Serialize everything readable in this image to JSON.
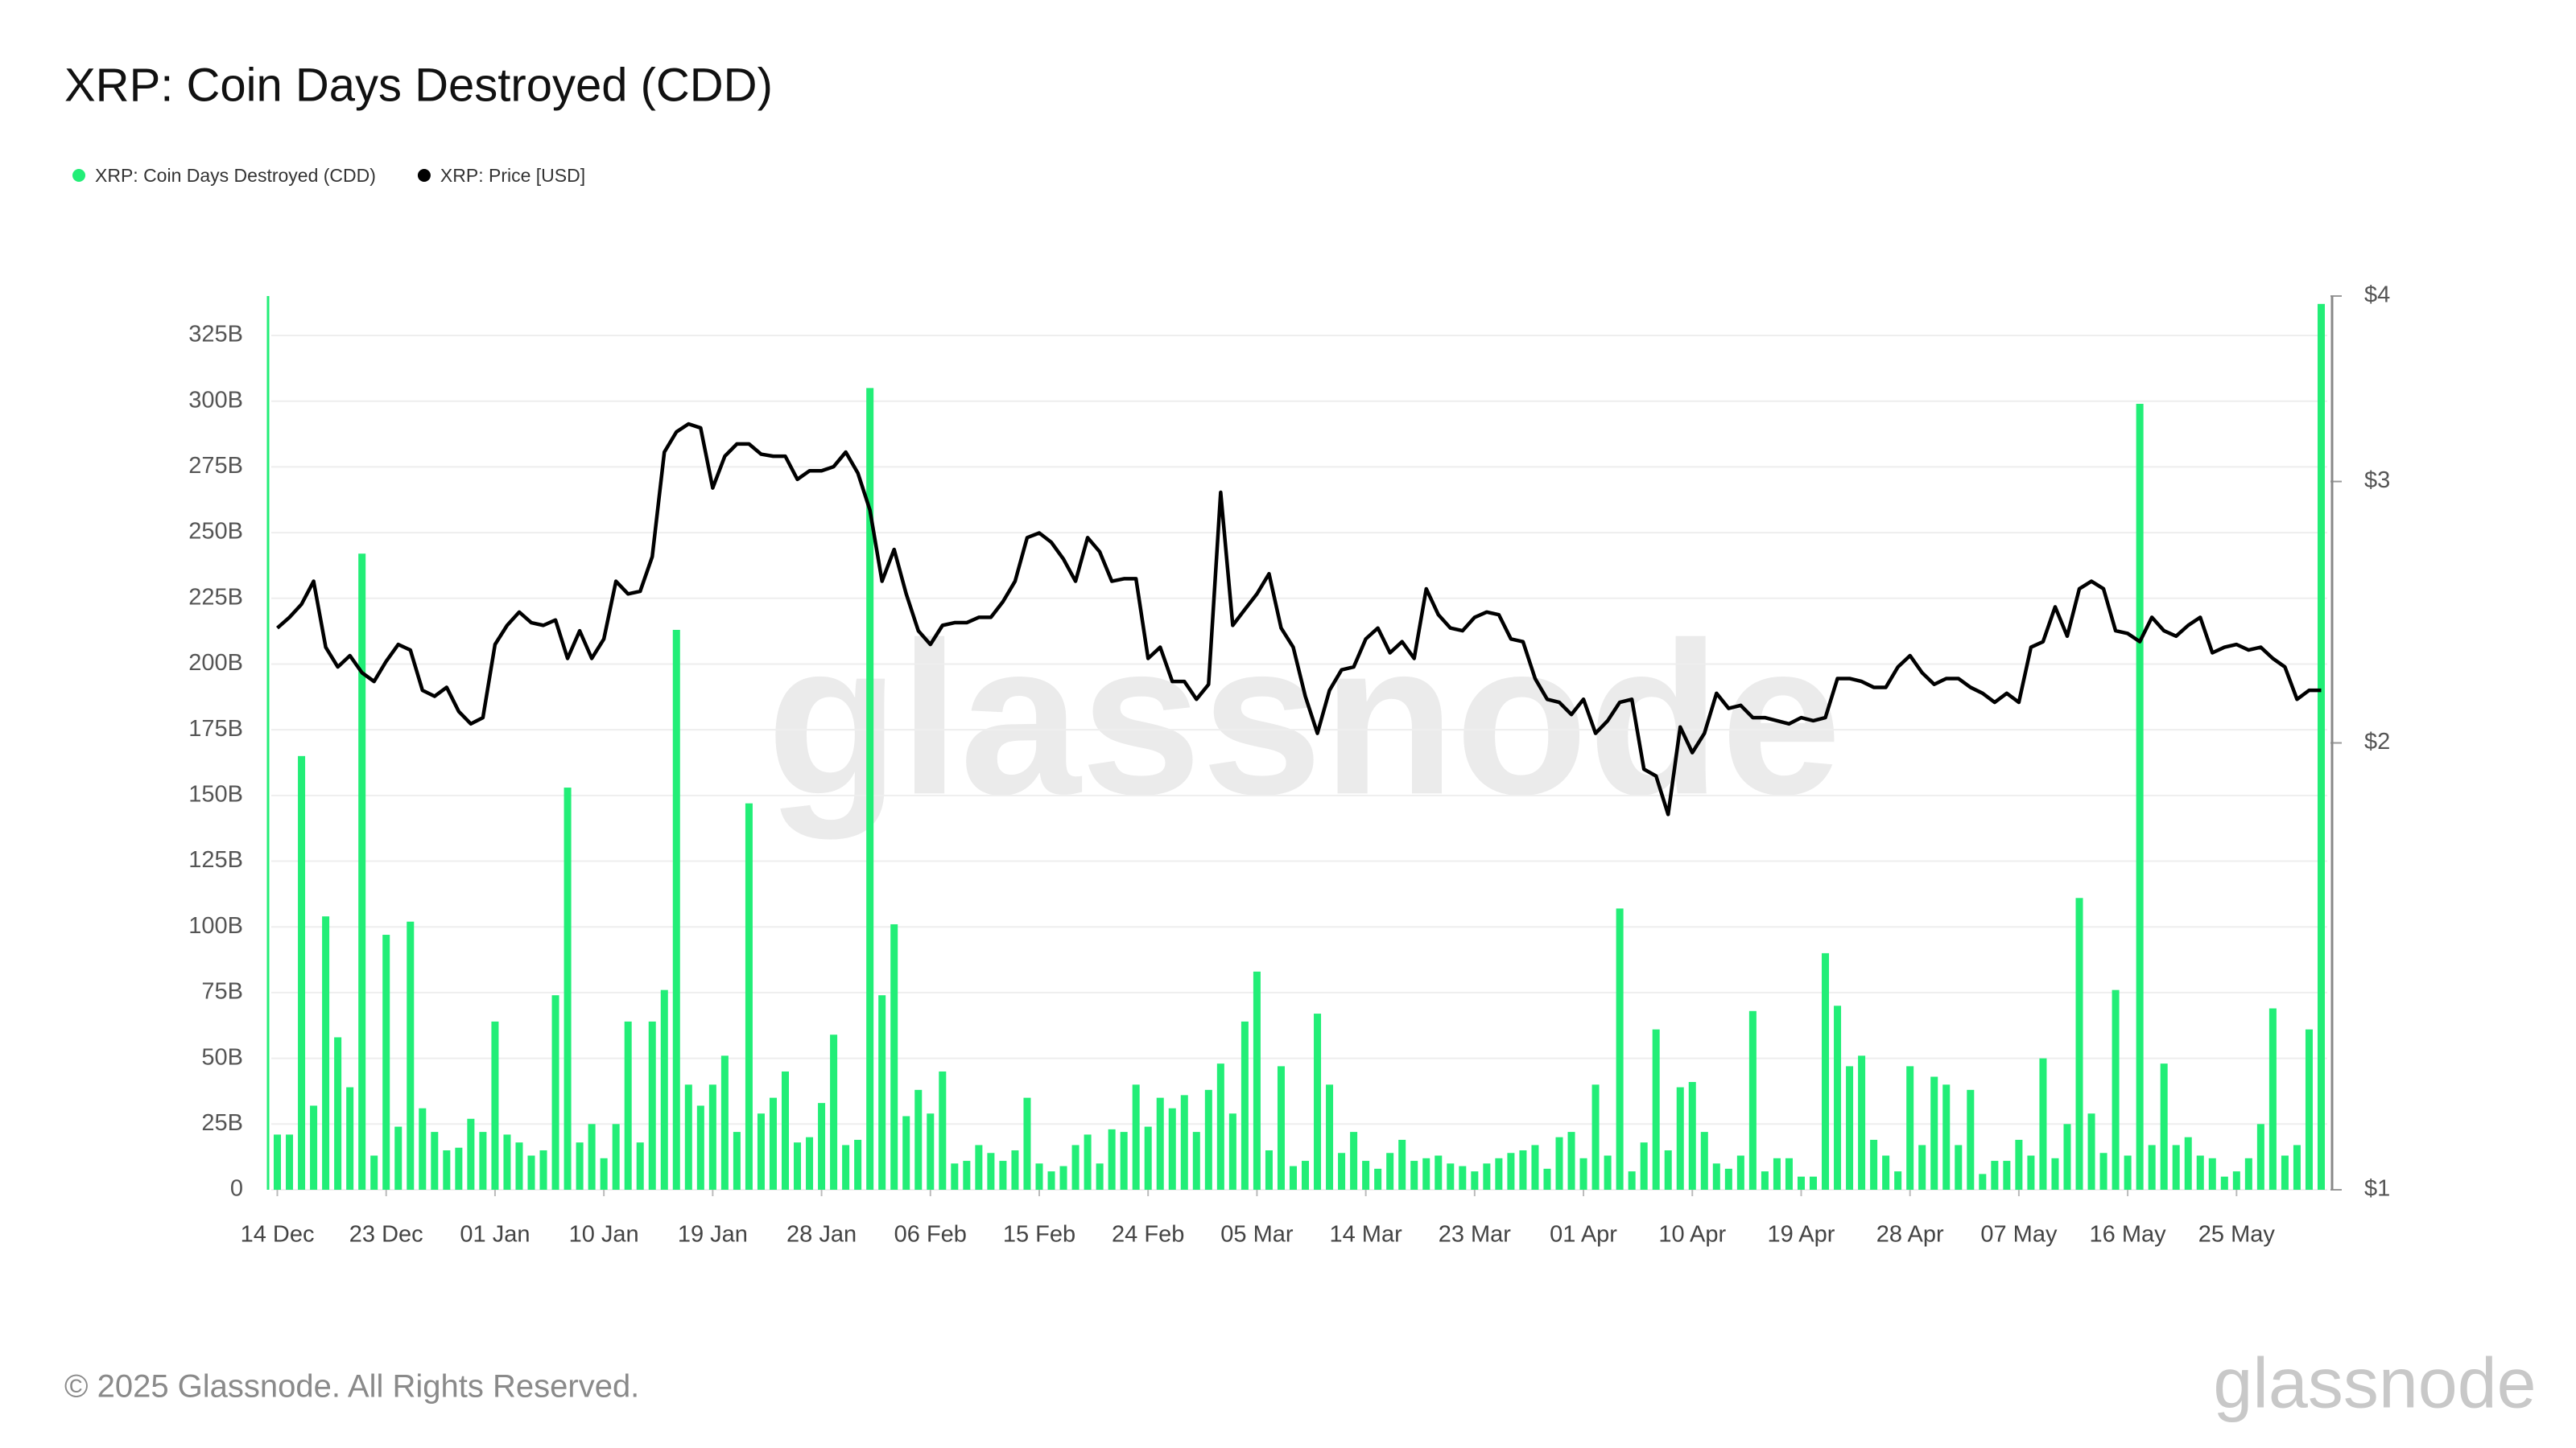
{
  "chart_data": {
    "type": "combo",
    "title": "XRP: Coin Days Destroyed (CDD)",
    "watermark": "glassnode",
    "categories": [
      "14 Dec",
      null,
      null,
      null,
      null,
      null,
      null,
      null,
      null,
      "23 Dec",
      null,
      null,
      null,
      null,
      null,
      null,
      null,
      null,
      "01 Jan",
      null,
      null,
      null,
      null,
      null,
      null,
      null,
      null,
      "10 Jan",
      null,
      null,
      null,
      null,
      null,
      null,
      null,
      null,
      "19 Jan",
      null,
      null,
      null,
      null,
      null,
      null,
      null,
      null,
      "28 Jan",
      null,
      null,
      null,
      null,
      null,
      null,
      null,
      null,
      "06 Feb",
      null,
      null,
      null,
      null,
      null,
      null,
      null,
      null,
      "15 Feb",
      null,
      null,
      null,
      null,
      null,
      null,
      null,
      null,
      "24 Feb",
      null,
      null,
      null,
      null,
      null,
      null,
      null,
      null,
      "05 Mar",
      null,
      null,
      null,
      null,
      null,
      null,
      null,
      null,
      "14 Mar",
      null,
      null,
      null,
      null,
      null,
      null,
      null,
      null,
      "23 Mar",
      null,
      null,
      null,
      null,
      null,
      null,
      null,
      null,
      "01 Apr",
      null,
      null,
      null,
      null,
      null,
      null,
      null,
      null,
      "10 Apr",
      null,
      null,
      null,
      null,
      null,
      null,
      null,
      null,
      "19 Apr",
      null,
      null,
      null,
      null,
      null,
      null,
      null,
      null,
      "28 Apr",
      null,
      null,
      null,
      null,
      null,
      null,
      null,
      null,
      "07 May",
      null,
      null,
      null,
      null,
      null,
      null,
      null,
      null,
      "16 May",
      null,
      null,
      null,
      null,
      null,
      null,
      null,
      null,
      "25 May",
      null,
      null,
      null,
      null,
      null,
      null,
      null
    ],
    "series": [
      {
        "name": "XRP: Coin Days Destroyed (CDD)",
        "type": "bar",
        "color": "#22ee77",
        "values": [
          21,
          21,
          165,
          32,
          104,
          58,
          39,
          242,
          13,
          97,
          24,
          102,
          31,
          22,
          15,
          16,
          27,
          22,
          64,
          21,
          18,
          13,
          15,
          74,
          153,
          18,
          25,
          12,
          25,
          64,
          18,
          64,
          76,
          213,
          40,
          32,
          40,
          51,
          22,
          147,
          29,
          35,
          45,
          18,
          20,
          33,
          59,
          17,
          19,
          305,
          74,
          101,
          28,
          38,
          29,
          45,
          10,
          11,
          17,
          14,
          11,
          15,
          35,
          10,
          7,
          9,
          17,
          21,
          10,
          23,
          22,
          40,
          24,
          35,
          31,
          36,
          22,
          38,
          48,
          29,
          64,
          83,
          15,
          47,
          9,
          11,
          67,
          40,
          14,
          22,
          11,
          8,
          14,
          19,
          11,
          12,
          13,
          10,
          9,
          7,
          10,
          12,
          14,
          15,
          17,
          8,
          20,
          22,
          12,
          40,
          13,
          107,
          7,
          18,
          61,
          15,
          39,
          41,
          22,
          10,
          8,
          13,
          68,
          7,
          12,
          12,
          5,
          5,
          90,
          70,
          47,
          51,
          19,
          13,
          7,
          47,
          17,
          43,
          40,
          17,
          38,
          6,
          11,
          11,
          19,
          13,
          50,
          12,
          25,
          111,
          29,
          14,
          76,
          13,
          299,
          17,
          48,
          17,
          20,
          13,
          12,
          5,
          7,
          12,
          25,
          69,
          13,
          17,
          61,
          337
        ]
      },
      {
        "name": "XRP: Price [USD]",
        "type": "line",
        "color": "#000000",
        "axis": "y2",
        "values": [
          2.39,
          2.43,
          2.48,
          2.57,
          2.32,
          2.25,
          2.29,
          2.23,
          2.2,
          2.27,
          2.33,
          2.31,
          2.17,
          2.15,
          2.18,
          2.1,
          2.06,
          2.08,
          2.33,
          2.4,
          2.45,
          2.41,
          2.4,
          2.42,
          2.28,
          2.38,
          2.28,
          2.35,
          2.57,
          2.52,
          2.53,
          2.67,
          3.14,
          3.24,
          3.28,
          3.26,
          2.97,
          3.12,
          3.18,
          3.18,
          3.13,
          3.12,
          3.12,
          3.01,
          3.05,
          3.05,
          3.07,
          3.14,
          3.04,
          2.87,
          2.57,
          2.7,
          2.52,
          2.38,
          2.33,
          2.4,
          2.41,
          2.41,
          2.43,
          2.43,
          2.49,
          2.57,
          2.75,
          2.77,
          2.73,
          2.66,
          2.57,
          2.75,
          2.69,
          2.57,
          2.58,
          2.58,
          2.28,
          2.32,
          2.2,
          2.2,
          2.14,
          2.19,
          2.95,
          2.4,
          2.46,
          2.52,
          2.6,
          2.39,
          2.32,
          2.15,
          2.03,
          2.17,
          2.24,
          2.25,
          2.35,
          2.39,
          2.3,
          2.34,
          2.28,
          2.54,
          2.44,
          2.39,
          2.38,
          2.43,
          2.45,
          2.44,
          2.35,
          2.34,
          2.21,
          2.14,
          2.13,
          2.09,
          2.14,
          2.03,
          2.07,
          2.13,
          2.14,
          1.92,
          1.9,
          1.79,
          2.05,
          1.97,
          2.03,
          2.16,
          2.11,
          2.12,
          2.08,
          2.08,
          2.07,
          2.06,
          2.08,
          2.07,
          2.08,
          2.21,
          2.21,
          2.2,
          2.18,
          2.18,
          2.25,
          2.29,
          2.23,
          2.19,
          2.21,
          2.21,
          2.18,
          2.16,
          2.13,
          2.16,
          2.13,
          2.32,
          2.34,
          2.47,
          2.36,
          2.54,
          2.57,
          2.54,
          2.38,
          2.37,
          2.34,
          2.43,
          2.38,
          2.36,
          2.4,
          2.43,
          2.3,
          2.32,
          2.33,
          2.31,
          2.32,
          2.28,
          2.25,
          2.14,
          2.17,
          2.17
        ]
      }
    ],
    "ylim": [
      0,
      340
    ],
    "yticks": [
      0,
      {
        "value": 25,
        "label": "25B"
      },
      {
        "value": 50,
        "label": "50B"
      },
      {
        "value": 75,
        "label": "75B"
      },
      {
        "value": 100,
        "label": "100B"
      },
      {
        "value": 125,
        "label": "125B"
      },
      {
        "value": 150,
        "label": "150B"
      },
      {
        "value": 175,
        "label": "175B"
      },
      {
        "value": 200,
        "label": "200B"
      },
      {
        "value": 225,
        "label": "225B"
      },
      {
        "value": 250,
        "label": "250B"
      },
      {
        "value": 275,
        "label": "275B"
      },
      {
        "value": 300,
        "label": "300B"
      },
      {
        "value": 325,
        "label": "325B"
      }
    ],
    "y2lim": [
      1,
      4
    ],
    "y2ticks": [
      {
        "value": 1,
        "label": "$1"
      },
      {
        "value": 2,
        "label": "$2"
      },
      {
        "value": 3,
        "label": "$3"
      },
      {
        "value": 4,
        "label": "$4"
      }
    ],
    "y2log": true,
    "grid": true
  },
  "footer": {
    "copyright": "© 2025 Glassnode. All Rights Reserved.",
    "logo": "glassnode"
  }
}
